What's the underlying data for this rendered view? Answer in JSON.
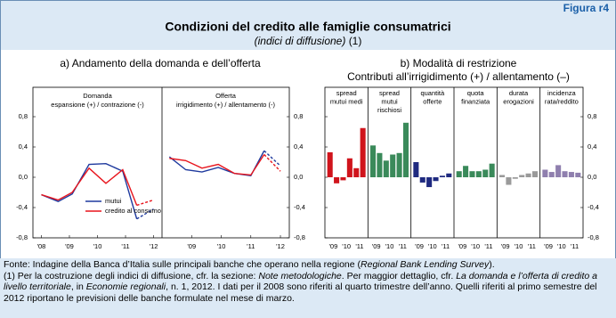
{
  "figure_label": "Figura r4",
  "title": "Condizioni del credito alle famiglie consumatrici",
  "subtitle": "(indici di diffusione)",
  "subtitle_note": "(1)",
  "chart_data": [
    {
      "type": "line",
      "title": "a) Andamento della domanda e dell’offerta",
      "ylim": [
        -0.8,
        0.8
      ],
      "yticks": [
        {
          "value": -0.8,
          "label": "-0,8"
        },
        {
          "value": -0.4,
          "label": "-0,4"
        },
        {
          "value": 0,
          "label": "0,0"
        },
        {
          "value": 0.4,
          "label": "0,4"
        },
        {
          "value": 0.8,
          "label": "0,8"
        }
      ],
      "dashed_last": true,
      "series": [
        {
          "name": "mutui",
          "color": "#1f3a9e"
        },
        {
          "name": "credito al consumo",
          "color": "#e8141c"
        }
      ],
      "panels": [
        {
          "title": "Domanda",
          "subtitle": "espansione (+) / contrazione (-)",
          "xlim": [
            2007.7,
            2012.3
          ],
          "xticks": [
            {
              "value": 2008,
              "label": "'08"
            },
            {
              "value": 2009,
              "label": "'09"
            },
            {
              "value": 2010,
              "label": "'10"
            },
            {
              "value": 2011,
              "label": "'11"
            },
            {
              "value": 2012,
              "label": "'12"
            }
          ],
          "x": [
            2008,
            2008.6,
            2009.1,
            2009.7,
            2010.3,
            2010.9,
            2011.4,
            2012
          ],
          "values": [
            [
              -0.23,
              -0.32,
              -0.22,
              0.17,
              0.18,
              0.08,
              -0.55,
              -0.42
            ],
            [
              -0.23,
              -0.3,
              -0.2,
              0.12,
              -0.08,
              0.1,
              -0.37,
              -0.3
            ]
          ]
        },
        {
          "title": "Offerta",
          "subtitle": "irrigidimento (+) / allentamento (-)",
          "xlim": [
            2008,
            2012.3
          ],
          "xticks": [
            {
              "value": 2009,
              "label": "'09"
            },
            {
              "value": 2010,
              "label": "'10"
            },
            {
              "value": 2011,
              "label": "'11"
            },
            {
              "value": 2012,
              "label": "'12"
            }
          ],
          "x": [
            2008.25,
            2008.8,
            2009.35,
            2009.9,
            2010.45,
            2011,
            2011.45,
            2012
          ],
          "values": [
            [
              0.27,
              0.1,
              0.07,
              0.13,
              0.05,
              0.02,
              0.35,
              0.15
            ],
            [
              0.25,
              0.22,
              0.12,
              0.17,
              0.05,
              0.03,
              0.3,
              0.08
            ]
          ]
        }
      ]
    },
    {
      "type": "bar",
      "title": "b) Modalità di restrizione",
      "subtitle": "Contributi all’irrigidimento (+) / allentamento (–)",
      "ylim": [
        -0.8,
        0.8
      ],
      "yticks": [
        {
          "value": -0.8,
          "label": "-0,8"
        },
        {
          "value": -0.4,
          "label": "-0,4"
        },
        {
          "value": 0,
          "label": "0,0"
        },
        {
          "value": 0.4,
          "label": "0,4"
        },
        {
          "value": 0.8,
          "label": "0,8"
        }
      ],
      "panels": [
        {
          "title": [
            "spread",
            "mutui medi"
          ],
          "color": "#d0141c",
          "categories": [
            "'09",
            null,
            "'10",
            null,
            "'11",
            null
          ],
          "values": [
            0.33,
            -0.08,
            -0.04,
            0.25,
            0.12,
            0.65
          ]
        },
        {
          "title": [
            "spread",
            "mutui",
            "rischiosi"
          ],
          "color": "#3a8a5a",
          "categories": [
            "'09",
            null,
            "'10",
            null,
            "'11",
            null
          ],
          "values": [
            0.42,
            0.32,
            0.22,
            0.3,
            0.32,
            0.72
          ]
        },
        {
          "title": [
            "quantità",
            "offerte"
          ],
          "color": "#1f2a80",
          "categories": [
            "'09",
            null,
            "'10",
            null,
            "'11",
            null
          ],
          "values": [
            0.2,
            -0.07,
            -0.13,
            -0.05,
            0.02,
            0.05
          ]
        },
        {
          "title": [
            "quota",
            "finanziata"
          ],
          "color": "#3a8a5a",
          "categories": [
            "'09",
            null,
            "'10",
            null,
            "'11",
            null
          ],
          "values": [
            0.08,
            0.15,
            0.08,
            0.08,
            0.1,
            0.18
          ]
        },
        {
          "title": [
            "durata",
            "erogazioni"
          ],
          "color": "#9a9a9a",
          "categories": [
            "'09",
            null,
            "'10",
            null,
            "'11",
            null
          ],
          "values": [
            0.03,
            -0.1,
            -0.02,
            0.03,
            0.05,
            0.08
          ]
        },
        {
          "title": [
            "incidenza",
            "rata/reddito"
          ],
          "color": "#8f7fae",
          "categories": [
            "'09",
            null,
            "'10",
            null,
            "'11",
            null
          ],
          "values": [
            0.1,
            0.07,
            0.16,
            0.08,
            0.07,
            0.06
          ]
        }
      ]
    }
  ],
  "notes": [
    [
      "Fonte: Indagine della Banca d’Italia sulle principali banche che operano nella regione (",
      "Regional Bank Lending Survey",
      ")."
    ],
    [
      "(1) Per la costruzione degli indici di diffusione, cfr. la sezione: ",
      "Note metodologiche",
      ". Per maggior dettaglio, cfr. ",
      "La domanda e l’offerta di credito a livello territoriale",
      ", in ",
      "Economie regionali",
      ", n. 1, 2012. I dati per il 2008 sono riferiti al quarto trimestre dell’anno. Quelli riferiti al primo semestre del 2012 riportano le previsioni delle banche formulate nel mese di marzo."
    ]
  ]
}
